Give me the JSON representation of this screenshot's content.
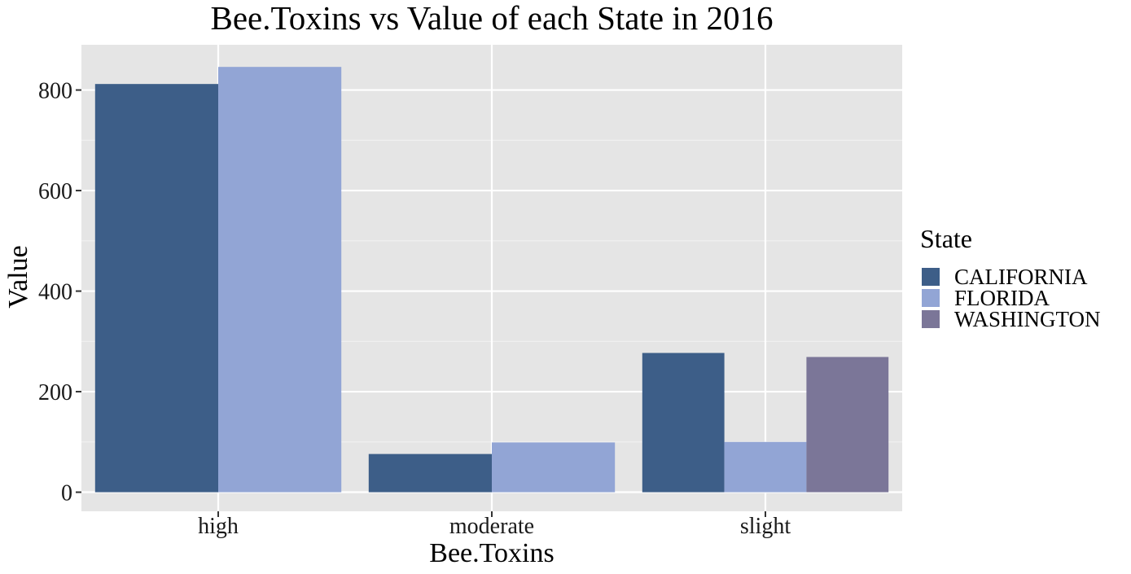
{
  "chart_data": {
    "type": "bar",
    "title": "Bee.Toxins vs Value of each State in 2016",
    "xlabel": "Bee.Toxins",
    "ylabel": "Value",
    "categories": [
      "high",
      "moderate",
      "slight"
    ],
    "series": [
      {
        "name": "CALIFORNIA",
        "color": "#3d5e88",
        "values": [
          812,
          76,
          277
        ]
      },
      {
        "name": "FLORIDA",
        "color": "#92a5d5",
        "values": [
          846,
          99,
          100
        ]
      },
      {
        "name": "WASHINGTON",
        "color": "#7b7698",
        "values": [
          null,
          null,
          269
        ]
      }
    ],
    "ylim": [
      -38,
      890
    ],
    "yticks": [
      0,
      200,
      400,
      600,
      800
    ],
    "grid": true,
    "legend": {
      "title": "State",
      "position": "right"
    }
  }
}
